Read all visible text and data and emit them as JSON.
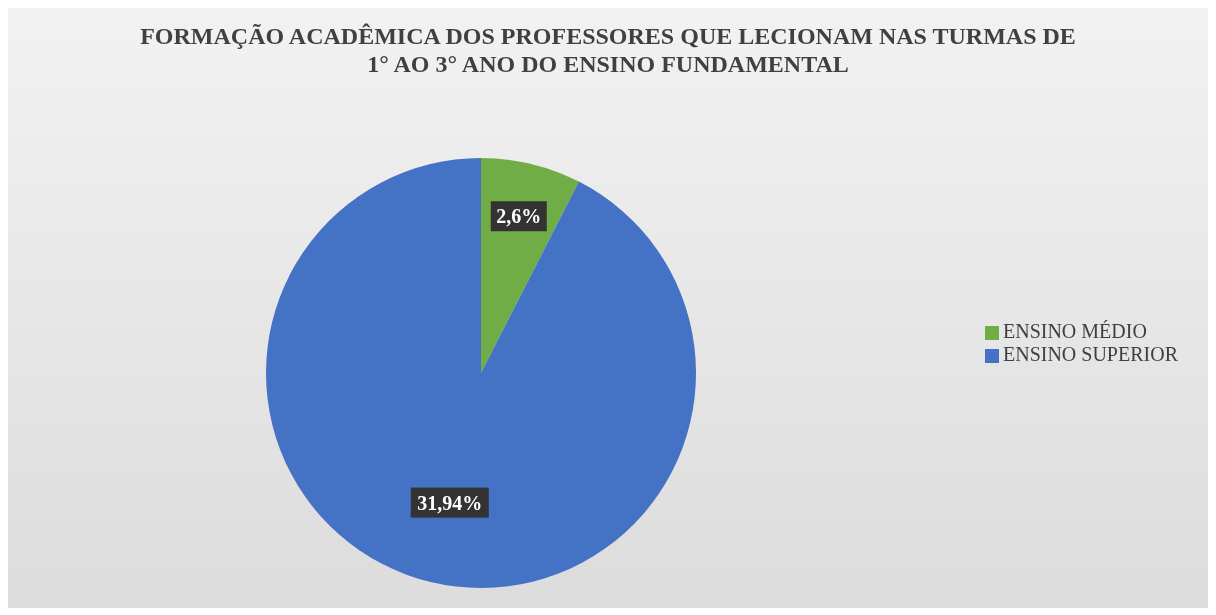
{
  "chart_data": {
    "type": "pie",
    "title": "FORMAÇÃO ACADÊMICA DOS PROFESSORES QUE LECIONAM NAS TURMAS DE 1° AO 3° ANO DO ENSINO FUNDAMENTAL",
    "categories": [
      "ENSINO MÉDIO",
      "ENSINO SUPERIOR"
    ],
    "values": [
      2.6,
      31.94
    ],
    "colors": [
      "#70ad47",
      "#4472c4"
    ],
    "value_labels": [
      "2,6%",
      "31,94%"
    ],
    "legend": "right"
  }
}
